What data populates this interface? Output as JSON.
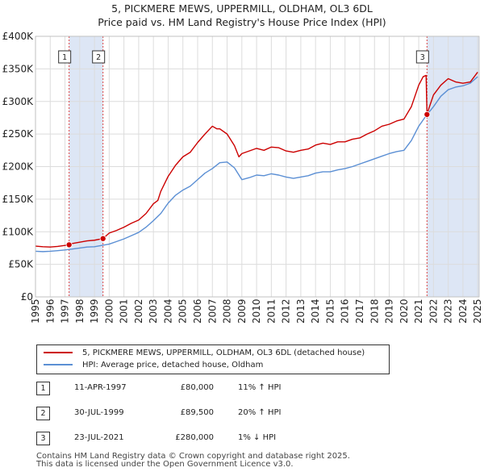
{
  "title": {
    "line1": "5, PICKMERE MEWS, UPPERMILL, OLDHAM, OL3 6DL",
    "line2": "Price paid vs. HM Land Registry's House Price Index (HPI)"
  },
  "colors": {
    "property": "#cc0000",
    "hpi": "#5b8fd4",
    "shade": "#dde6f5",
    "grid": "#dcdcdc",
    "marker_line": "#dd4444"
  },
  "legend": {
    "property_label": "5, PICKMERE MEWS, UPPERMILL, OLDHAM, OL3 6DL (detached house)",
    "hpi_label": "HPI: Average price, detached house, Oldham"
  },
  "transactions": [
    {
      "num": "1",
      "date": "11-APR-1997",
      "price": "£80,000",
      "hpi": "11% ↑ HPI"
    },
    {
      "num": "2",
      "date": "30-JUL-1999",
      "price": "£89,500",
      "hpi": "20% ↑ HPI"
    },
    {
      "num": "3",
      "date": "23-JUL-2021",
      "price": "£280,000",
      "hpi": "1% ↓ HPI"
    }
  ],
  "footer": {
    "line1": "Contains HM Land Registry data © Crown copyright and database right 2025.",
    "line2": "This data is licensed under the Open Government Licence v3.0."
  },
  "chart_data": {
    "type": "line",
    "xlim": [
      1995,
      2025.1
    ],
    "ylim": [
      0,
      400000
    ],
    "x_ticks": [
      1995,
      1996,
      1997,
      1998,
      1999,
      2000,
      2001,
      2002,
      2003,
      2004,
      2005,
      2006,
      2007,
      2008,
      2009,
      2010,
      2011,
      2012,
      2013,
      2014,
      2015,
      2016,
      2017,
      2018,
      2019,
      2020,
      2021,
      2022,
      2023,
      2024,
      2025
    ],
    "y_ticks": [
      {
        "value": 0,
        "label": "£0"
      },
      {
        "value": 50000,
        "label": "£50K"
      },
      {
        "value": 100000,
        "label": "£100K"
      },
      {
        "value": 150000,
        "label": "£150K"
      },
      {
        "value": 200000,
        "label": "£200K"
      },
      {
        "value": 250000,
        "label": "£250K"
      },
      {
        "value": 300000,
        "label": "£300K"
      },
      {
        "value": 350000,
        "label": "£350K"
      },
      {
        "value": 400000,
        "label": "£400K"
      }
    ],
    "grid": true,
    "shaded_periods": [
      [
        1997.28,
        1999.58
      ],
      [
        2021.56,
        2025.1
      ]
    ],
    "sales": [
      {
        "num": "1",
        "x": 1997.28,
        "y": 80000
      },
      {
        "num": "2",
        "x": 1999.58,
        "y": 89500
      },
      {
        "num": "3",
        "x": 2021.56,
        "y": 280000
      }
    ],
    "series": [
      {
        "name": "5, PICKMERE MEWS, UPPERMILL, OLDHAM, OL3 6DL (detached house)",
        "x": [
          1995,
          1995.5,
          1996,
          1996.5,
          1997,
          1997.28,
          1997.5,
          1998,
          1998.5,
          1999,
          1999.58,
          1999.8,
          2000,
          2000.5,
          2001,
          2001.5,
          2002,
          2002.5,
          2003,
          2003.3,
          2003.5,
          2004,
          2004.5,
          2005,
          2005.5,
          2006,
          2006.5,
          2007,
          2007.3,
          2007.5,
          2008,
          2008.5,
          2008.8,
          2009,
          2009.5,
          2010,
          2010.5,
          2011,
          2011.5,
          2012,
          2012.5,
          2013,
          2013.5,
          2014,
          2014.5,
          2015,
          2015.5,
          2016,
          2016.5,
          2017,
          2017.5,
          2018,
          2018.5,
          2019,
          2019.5,
          2020,
          2020.5,
          2021,
          2021.3,
          2021.5,
          2021.56,
          2021.7,
          2022,
          2022.5,
          2023,
          2023.5,
          2024,
          2024.5,
          2025
        ],
        "values": [
          78000,
          77000,
          76500,
          77500,
          79000,
          80000,
          82000,
          84000,
          86000,
          87000,
          89500,
          94000,
          98000,
          102000,
          107000,
          113000,
          118000,
          128000,
          143000,
          148000,
          162000,
          185000,
          202000,
          215000,
          222000,
          237000,
          250000,
          262000,
          258000,
          258000,
          250000,
          232000,
          215000,
          220000,
          224000,
          228000,
          225000,
          230000,
          229000,
          224000,
          222000,
          225000,
          227000,
          233000,
          236000,
          234000,
          238000,
          238000,
          242000,
          244000,
          250000,
          255000,
          262000,
          265000,
          270000,
          273000,
          292000,
          325000,
          338000,
          340000,
          280000,
          290000,
          310000,
          325000,
          335000,
          330000,
          328000,
          330000,
          345000
        ]
      },
      {
        "name": "HPI: Average price, detached house, Oldham",
        "x": [
          1995,
          1995.5,
          1996,
          1996.5,
          1997,
          1997.5,
          1998,
          1998.5,
          1999,
          1999.5,
          2000,
          2000.5,
          2001,
          2001.5,
          2002,
          2002.5,
          2003,
          2003.5,
          2004,
          2004.5,
          2005,
          2005.5,
          2006,
          2006.5,
          2007,
          2007.5,
          2008,
          2008.5,
          2009,
          2009.5,
          2010,
          2010.5,
          2011,
          2011.5,
          2012,
          2012.5,
          2013,
          2013.5,
          2014,
          2014.5,
          2015,
          2015.5,
          2016,
          2016.5,
          2017,
          2017.5,
          2018,
          2018.5,
          2019,
          2019.5,
          2020,
          2020.5,
          2021,
          2021.5,
          2022,
          2022.5,
          2023,
          2023.5,
          2024,
          2024.5,
          2025
        ],
        "values": [
          70000,
          69500,
          70000,
          71000,
          72000,
          73500,
          75000,
          76500,
          77000,
          79000,
          81000,
          85000,
          89000,
          94000,
          99000,
          107000,
          117000,
          128000,
          144000,
          156000,
          164000,
          170000,
          180000,
          190000,
          197000,
          206000,
          207000,
          198000,
          180000,
          183000,
          187000,
          186000,
          189000,
          187000,
          184000,
          182000,
          184000,
          186000,
          190000,
          192000,
          192000,
          195000,
          197000,
          200000,
          204000,
          208000,
          212000,
          216000,
          220000,
          223000,
          225000,
          240000,
          262000,
          278000,
          292000,
          308000,
          318000,
          322000,
          324000,
          328000,
          338000
        ]
      }
    ]
  }
}
